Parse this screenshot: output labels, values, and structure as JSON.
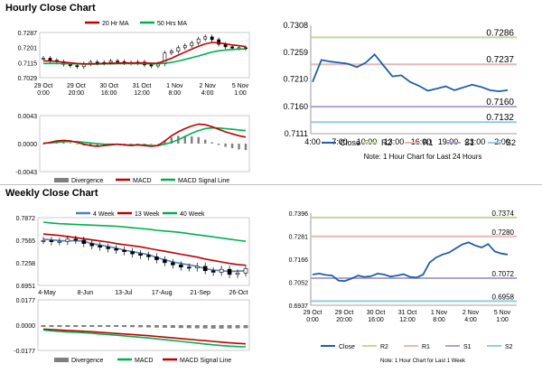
{
  "sections": {
    "hourly_title": "Hourly Close Chart",
    "weekly_title": "Weekly Close Chart"
  },
  "colors": {
    "red": "#c00000",
    "green": "#00b050",
    "blue": "#4f81bd",
    "navy": "#1f5fa8",
    "r2": "#c3d69b",
    "r1": "#e6b9b8",
    "s1": "#b3a2c7",
    "s2": "#92cddc",
    "divergence": "#7f7f7f"
  },
  "chart_data": [
    {
      "id": "hourly_price",
      "type": "line",
      "legend": [
        {
          "label": "20 Hr MA",
          "color": "#c00000"
        },
        {
          "label": "50 Hrs MA",
          "color": "#00b050"
        }
      ],
      "x_ticks": [
        "29 Oct\n0:00",
        "29 Oct\n20:00",
        "30 Oct\n16:00",
        "31 Oct\n12:00",
        "1 Nov\n8:00",
        "2 Nov\n4:00",
        "5 Nov\n1:00"
      ],
      "y_ticks": [
        0.7287,
        0.7201,
        0.7115,
        0.7029
      ],
      "ylim": [
        0.7029,
        0.7287
      ],
      "series": [
        {
          "name": "Price (candles)",
          "values": [
            0.714,
            0.7128,
            0.712,
            0.7105,
            0.7098,
            0.7092,
            0.7108,
            0.7118,
            0.7112,
            0.7116,
            0.7124,
            0.712,
            0.7114,
            0.7112,
            0.7118,
            0.7102,
            0.7096,
            0.7108,
            0.717,
            0.718,
            0.72,
            0.7212,
            0.7228,
            0.725,
            0.7262,
            0.7246,
            0.722,
            0.7205,
            0.7198,
            0.72,
            0.7195
          ]
        },
        {
          "name": "20 Hr MA",
          "values": [
            0.7125,
            0.7124,
            0.7122,
            0.7118,
            0.7114,
            0.711,
            0.7108,
            0.7108,
            0.7109,
            0.711,
            0.7111,
            0.7112,
            0.7113,
            0.7113,
            0.7114,
            0.7113,
            0.7111,
            0.7112,
            0.7125,
            0.714,
            0.7158,
            0.7175,
            0.7192,
            0.7208,
            0.7222,
            0.723,
            0.7228,
            0.7222,
            0.7216,
            0.7212,
            0.7206
          ]
        },
        {
          "name": "50 Hrs MA",
          "values": [
            0.711,
            0.711,
            0.711,
            0.7109,
            0.7108,
            0.7108,
            0.7107,
            0.7107,
            0.7107,
            0.7108,
            0.7108,
            0.7109,
            0.7109,
            0.7109,
            0.7109,
            0.7109,
            0.7108,
            0.7108,
            0.7111,
            0.7116,
            0.7124,
            0.7133,
            0.7143,
            0.7153,
            0.7164,
            0.7175,
            0.7182,
            0.7187,
            0.719,
            0.7192,
            0.7193
          ]
        }
      ]
    },
    {
      "id": "hourly_macd",
      "type": "line",
      "y_ticks": [
        "0.0043",
        "0.0000",
        "-0.0043"
      ],
      "ylim": [
        -0.0043,
        0.0043
      ],
      "legend": [
        {
          "label": "Divergence",
          "color": "#7f7f7f"
        },
        {
          "label": "MACD",
          "color": "#c00000"
        },
        {
          "label": "MACD Signal Line",
          "color": "#00b050"
        }
      ],
      "series": [
        {
          "name": "MACD",
          "values": [
            0.0,
            0.0002,
            0.0004,
            0.0005,
            0.0004,
            0.0002,
            -0.0001,
            -0.0003,
            -0.0004,
            -0.0003,
            -0.0002,
            -0.0001,
            -0.0002,
            -0.0003,
            -0.0002,
            -0.0003,
            -0.0004,
            -0.0003,
            0.0004,
            0.0012,
            0.0018,
            0.0023,
            0.0027,
            0.003,
            0.0029,
            0.0026,
            0.0022,
            0.0018,
            0.0015,
            0.0012,
            0.001
          ]
        },
        {
          "name": "MACD Signal Line",
          "values": [
            0.0001,
            0.0001,
            0.0002,
            0.0003,
            0.0003,
            0.0003,
            0.0002,
            0.0001,
            0.0,
            -0.0001,
            -0.0001,
            -0.0001,
            -0.0002,
            -0.0002,
            -0.0002,
            -0.0002,
            -0.0003,
            -0.0003,
            -0.0001,
            0.0002,
            0.0006,
            0.0011,
            0.0016,
            0.002,
            0.0023,
            0.0024,
            0.0024,
            0.0023,
            0.0022,
            0.0021,
            0.002
          ]
        }
      ]
    },
    {
      "id": "hourly_pivots",
      "type": "line",
      "x_ticks": [
        "4:00",
        "7:00",
        "10:00",
        "13:00",
        "16:00",
        "19:00",
        "23:00",
        "2:00"
      ],
      "y_ticks": [
        "0.7308",
        "0.7259",
        "0.7210",
        "0.7160",
        "0.7111"
      ],
      "ylim": [
        0.7111,
        0.7308
      ],
      "levels": [
        {
          "name": "R2",
          "value": 0.7286,
          "label": "0.7286",
          "color": "#c3d69b"
        },
        {
          "name": "R1",
          "value": 0.7237,
          "label": "0.7237",
          "color": "#e6b9b8"
        },
        {
          "name": "S1",
          "value": 0.716,
          "label": "0.7160",
          "color": "#b3a2c7"
        },
        {
          "name": "S2",
          "value": 0.7132,
          "label": "0.7132",
          "color": "#92cddc"
        }
      ],
      "series": [
        {
          "name": "Close",
          "color": "#1f5fa8",
          "values": [
            0.7205,
            0.7245,
            0.7242,
            0.724,
            0.7238,
            0.7232,
            0.724,
            0.7255,
            0.7235,
            0.7215,
            0.7217,
            0.7205,
            0.7198,
            0.7189,
            0.7193,
            0.7197,
            0.719,
            0.7195,
            0.72,
            0.7196,
            0.719,
            0.7188,
            0.719
          ]
        }
      ],
      "legend": [
        {
          "label": "Close",
          "color": "#1f5fa8"
        },
        {
          "label": "R2",
          "color": "#c3d69b"
        },
        {
          "label": "R1",
          "color": "#e6b9b8"
        },
        {
          "label": "S1",
          "color": "#b3a2c7"
        },
        {
          "label": "S2",
          "color": "#92cddc"
        }
      ],
      "note": "Note: 1 Hour Chart for Last 24 Hours"
    },
    {
      "id": "weekly_price",
      "type": "line",
      "legend": [
        {
          "label": "4 Week",
          "color": "#4f81bd"
        },
        {
          "label": "13 Week",
          "color": "#c00000"
        },
        {
          "label": "40 Week",
          "color": "#00b050"
        }
      ],
      "x_ticks": [
        "4-May",
        "8-Jun",
        "13-Jul",
        "17-Aug",
        "21-Sep",
        "26-Oct"
      ],
      "y_ticks": [
        "0.7872",
        "0.7565",
        "0.7258",
        "0.6951"
      ],
      "ylim": [
        0.6951,
        0.7872
      ],
      "series": [
        {
          "name": "Price (candles)",
          "values": [
            0.756,
            0.7545,
            0.755,
            0.758,
            0.7565,
            0.752,
            0.749,
            0.747,
            0.745,
            0.743,
            0.741,
            0.738,
            0.736,
            0.734,
            0.73,
            0.726,
            0.723,
            0.72,
            0.719,
            0.721,
            0.715,
            0.713,
            0.717,
            0.71,
            0.712,
            0.718
          ]
        },
        {
          "name": "4 Week",
          "values": [
            0.758,
            0.757,
            0.756,
            0.7555,
            0.756,
            0.755,
            0.752,
            0.75,
            0.748,
            0.746,
            0.743,
            0.741,
            0.739,
            0.737,
            0.733,
            0.73,
            0.727,
            0.725,
            0.723,
            0.721,
            0.718,
            0.716,
            0.715,
            0.714,
            0.7145,
            0.715
          ]
        },
        {
          "name": "13 Week",
          "values": [
            0.765,
            0.764,
            0.763,
            0.7615,
            0.76,
            0.7585,
            0.757,
            0.7555,
            0.754,
            0.752,
            0.7505,
            0.749,
            0.7475,
            0.7455,
            0.7435,
            0.7415,
            0.7395,
            0.7375,
            0.7355,
            0.7335,
            0.731,
            0.729,
            0.727,
            0.725,
            0.7235,
            0.7225
          ]
        },
        {
          "name": "40 Week",
          "values": [
            0.781,
            0.78,
            0.779,
            0.7785,
            0.778,
            0.7775,
            0.777,
            0.7765,
            0.776,
            0.7755,
            0.7745,
            0.7735,
            0.7725,
            0.7715,
            0.77,
            0.769,
            0.768,
            0.767,
            0.7655,
            0.764,
            0.7625,
            0.761,
            0.7595,
            0.758,
            0.7565,
            0.755
          ]
        }
      ]
    },
    {
      "id": "weekly_macd",
      "type": "line",
      "y_ticks": [
        "0.0177",
        "0.0000",
        "-0.0177"
      ],
      "ylim": [
        -0.0177,
        0.0177
      ],
      "legend": [
        {
          "label": "Divergence",
          "color": "#7f7f7f"
        },
        {
          "label": "MACD",
          "color": "#00b050"
        },
        {
          "label": "MACD Signal Line",
          "color": "#c00000"
        }
      ],
      "series": [
        {
          "name": "MACD",
          "values": [
            -0.0035,
            -0.004,
            -0.0045,
            -0.0048,
            -0.005,
            -0.0053,
            -0.0057,
            -0.0062,
            -0.0066,
            -0.007,
            -0.0075,
            -0.008,
            -0.0085,
            -0.009,
            -0.0096,
            -0.0102,
            -0.0108,
            -0.0114,
            -0.012,
            -0.0126,
            -0.0132,
            -0.0138,
            -0.0143,
            -0.0147,
            -0.015,
            -0.0152
          ]
        },
        {
          "name": "MACD Signal Line",
          "values": [
            -0.0028,
            -0.0031,
            -0.0034,
            -0.0037,
            -0.004,
            -0.0043,
            -0.0046,
            -0.005,
            -0.0054,
            -0.0058,
            -0.0062,
            -0.0066,
            -0.007,
            -0.0074,
            -0.0079,
            -0.0084,
            -0.0089,
            -0.0094,
            -0.0099,
            -0.0104,
            -0.0109,
            -0.0114,
            -0.0119,
            -0.0124,
            -0.0128,
            -0.0131
          ]
        }
      ]
    },
    {
      "id": "weekly_pivots",
      "type": "line",
      "x_ticks": [
        "29 Oct\n0:00",
        "29 Oct\n20:00",
        "30 Oct\n16:00",
        "31 Oct\n12:00",
        "1 Nov\n8:00",
        "2 Nov\n4:00",
        "5 Nov\n1:00"
      ],
      "y_ticks": [
        "0.7396",
        "0.7281",
        "0.7166",
        "0.7052",
        "0.6937"
      ],
      "ylim": [
        0.6937,
        0.7396
      ],
      "levels": [
        {
          "name": "R2",
          "value": 0.7374,
          "label": "0.7374",
          "color": "#c3d69b"
        },
        {
          "name": "R1",
          "value": 0.728,
          "label": "0.7280",
          "color": "#e6b9b8"
        },
        {
          "name": "S1",
          "value": 0.7072,
          "label": "0.7072",
          "color": "#b3a2c7"
        },
        {
          "name": "S2",
          "value": 0.6958,
          "label": "0.6958",
          "color": "#92cddc"
        }
      ],
      "series": [
        {
          "name": "Close",
          "color": "#1f5fa8",
          "values": [
            0.709,
            0.7095,
            0.7088,
            0.7085,
            0.706,
            0.7058,
            0.707,
            0.7085,
            0.7078,
            0.7082,
            0.7095,
            0.709,
            0.708,
            0.7085,
            0.7092,
            0.7078,
            0.7075,
            0.709,
            0.715,
            0.7175,
            0.719,
            0.72,
            0.722,
            0.724,
            0.725,
            0.7235,
            0.7225,
            0.7242,
            0.7205,
            0.7195,
            0.719
          ]
        }
      ],
      "legend": [
        {
          "label": "Close",
          "color": "#1f5fa8"
        },
        {
          "label": "R2",
          "color": "#c3d69b"
        },
        {
          "label": "R1",
          "color": "#e6b9b8"
        },
        {
          "label": "S1",
          "color": "#b3a2c7"
        },
        {
          "label": "S2",
          "color": "#92cddc"
        }
      ],
      "note": "Note: 1 Hour Chart for Last 1 Week"
    }
  ]
}
